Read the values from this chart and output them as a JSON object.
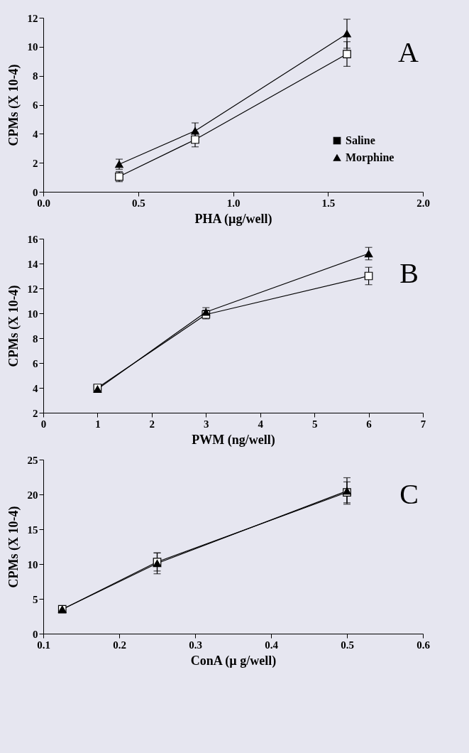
{
  "chart_data": [
    {
      "type": "line",
      "xlabel": "PHA (µg/well)",
      "ylabel": "CPMs (X 10-4)",
      "annotations": [
        "A"
      ],
      "legend": "bottom right",
      "xlim": [
        0,
        2
      ],
      "xticks": [
        {
          "value": 0,
          "label": "0.0"
        },
        0.5,
        {
          "value": 1,
          "label": "1.0"
        },
        1.5,
        {
          "value": 2,
          "label": "2.0"
        }
      ],
      "ylim": [
        0,
        12
      ],
      "yticks": [
        0,
        2,
        4,
        6,
        8,
        10,
        12
      ],
      "grid": false,
      "series": [
        {
          "name": "Saline",
          "color": "#000000",
          "marker": "square",
          "x": [
            0.4,
            0.8,
            1.6
          ],
          "values": [
            1.05,
            3.6,
            9.5
          ],
          "errors": [
            0.35,
            0.5,
            0.85
          ]
        },
        {
          "name": "Morphine",
          "color": "#000000",
          "marker": "triangle",
          "x": [
            0.4,
            0.8,
            1.6
          ],
          "values": [
            1.9,
            4.2,
            10.9
          ],
          "errors": [
            0.35,
            0.55,
            1.0
          ]
        }
      ]
    },
    {
      "type": "line",
      "xlabel": "PWM (ng/well)",
      "ylabel": "CPMs (X 10-4)",
      "annotations": [
        "B"
      ],
      "xlim": [
        0,
        7
      ],
      "xticks": [
        0,
        1,
        2,
        3,
        4,
        5,
        6,
        7
      ],
      "ylim": [
        2,
        16
      ],
      "yticks": [
        2,
        4,
        6,
        8,
        10,
        12,
        14,
        16
      ],
      "grid": false,
      "series": [
        {
          "color": "#000000",
          "marker": "square",
          "x": [
            1,
            3,
            6
          ],
          "values": [
            4.0,
            9.9,
            13.0
          ],
          "errors": [
            0.15,
            0.35,
            0.7
          ]
        },
        {
          "color": "#000000",
          "marker": "triangle",
          "x": [
            1,
            3,
            6
          ],
          "values": [
            3.9,
            10.1,
            14.8
          ],
          "errors": [
            0.1,
            0.35,
            0.5
          ]
        }
      ]
    },
    {
      "type": "line",
      "xlabel": "ConA (µ g/well)",
      "ylabel": "CPMs (X 10-4)",
      "annotations": [
        "C"
      ],
      "xlim": [
        0.1,
        0.6
      ],
      "xticks": [
        0.1,
        0.2,
        0.3,
        0.4,
        0.5,
        0.6
      ],
      "ylim": [
        0,
        25
      ],
      "yticks": [
        0,
        5,
        10,
        15,
        20,
        25
      ],
      "grid": false,
      "series": [
        {
          "color": "#000000",
          "marker": "square",
          "x": [
            0.125,
            0.25,
            0.5
          ],
          "values": [
            3.5,
            10.3,
            20.3
          ],
          "errors": [
            0.3,
            1.3,
            1.5
          ]
        },
        {
          "color": "#000000",
          "marker": "triangle",
          "x": [
            0.125,
            0.25,
            0.5
          ],
          "values": [
            3.5,
            10.1,
            20.5
          ],
          "errors": [
            0.2,
            1.5,
            1.9
          ]
        }
      ]
    }
  ]
}
